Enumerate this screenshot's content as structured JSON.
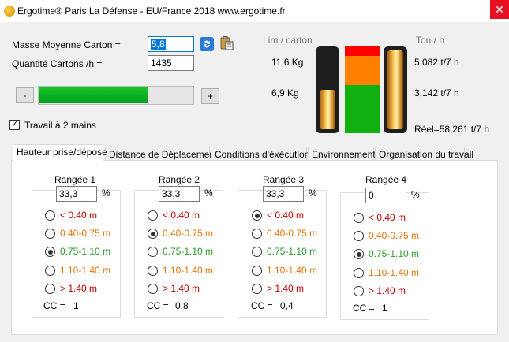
{
  "window": {
    "title": "Ergotime®  Paris La Défense - EU/France 2018   www.ergotime.fr",
    "close_label": "✕"
  },
  "form": {
    "masse_label": "Masse Moyenne Carton =",
    "masse_value": "5,8",
    "quantite_label": "Quantité Cartons /h =",
    "quantite_value": "1435",
    "minus_label": "-",
    "plus_label": "+",
    "slider_progress": 0.7,
    "travail_label": "Travail à 2 mains",
    "travail_checked": "✓"
  },
  "gauges": {
    "lim_header": "Lim / carton",
    "ton_header": "Ton / h",
    "lim_high": "11,6 Kg",
    "lim_low": "6,9 Kg",
    "ton_high": "5,082 t/7 h",
    "ton_low": "3,142 t/7 h",
    "reel": "Réel=58,261 t/7 h",
    "left_gauge_fill": 0.5,
    "right_gauge_fill": 1.0,
    "colors": {
      "red": "#ff0000",
      "orange": "#ff8000",
      "green": "#10b010"
    }
  },
  "tabs": [
    {
      "label": "Hauteur prise/dépose",
      "active": true
    },
    {
      "label": "Distance de Déplacement",
      "active": false
    },
    {
      "label": "Conditions d'éxécutions",
      "active": false
    },
    {
      "label": "Environnement",
      "active": false
    },
    {
      "label": "Organisation du travail",
      "active": false
    }
  ],
  "options": [
    "< 0.40 m",
    "0.40-0.75 m",
    "0.75-1.10 m",
    "1.10-1.40 m",
    "> 1.40 m"
  ],
  "percent": "%",
  "cc_label": "CC =",
  "rangees": [
    {
      "title": "Rangée 1",
      "value": "33,3",
      "selected": 2,
      "cc": "1"
    },
    {
      "title": "Rangée 2",
      "value": "33,3",
      "selected": 1,
      "cc": "0,8"
    },
    {
      "title": "Rangée 3",
      "value": "33,3",
      "selected": 0,
      "cc": "0,4"
    },
    {
      "title": "Rangée 4",
      "value": "0",
      "selected": 2,
      "cc": "1"
    }
  ]
}
